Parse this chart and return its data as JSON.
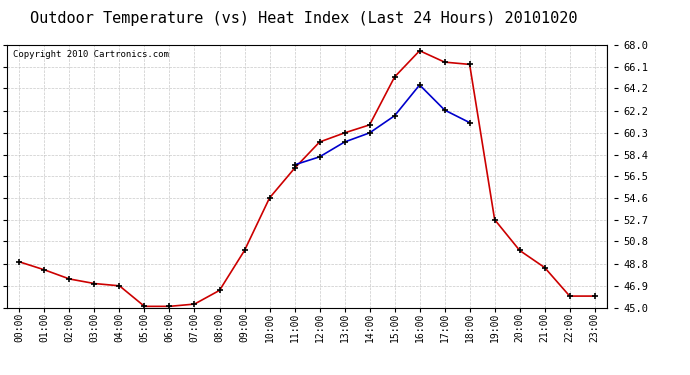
{
  "title": "Outdoor Temperature (vs) Heat Index (Last 24 Hours) 20101020",
  "copyright": "Copyright 2010 Cartronics.com",
  "x_labels": [
    "00:00",
    "01:00",
    "02:00",
    "03:00",
    "04:00",
    "05:00",
    "06:00",
    "07:00",
    "08:00",
    "09:00",
    "10:00",
    "11:00",
    "12:00",
    "13:00",
    "14:00",
    "15:00",
    "16:00",
    "17:00",
    "18:00",
    "19:00",
    "20:00",
    "21:00",
    "22:00",
    "23:00"
  ],
  "temp_y": [
    49.0,
    48.3,
    47.5,
    47.1,
    46.9,
    45.1,
    45.1,
    45.3,
    46.5,
    50.0,
    54.6,
    57.2,
    59.5,
    60.3,
    61.0,
    65.2,
    67.5,
    66.5,
    66.3,
    52.7,
    50.0,
    48.5,
    46.0,
    46.0
  ],
  "heat_x": [
    11,
    12,
    13,
    14,
    15,
    16,
    17,
    18
  ],
  "heat_y": [
    57.5,
    58.2,
    59.5,
    60.3,
    61.8,
    64.5,
    62.3,
    61.2
  ],
  "ylim_min": 45.0,
  "ylim_max": 68.0,
  "yticks": [
    45.0,
    46.9,
    48.8,
    50.8,
    52.7,
    54.6,
    56.5,
    58.4,
    60.3,
    62.2,
    64.2,
    66.1,
    68.0
  ],
  "temp_color": "#cc0000",
  "heat_color": "#0000cc",
  "bg_color": "#ffffff",
  "grid_color": "#bbbbbb",
  "title_fontsize": 11,
  "copyright_fontsize": 6.5,
  "tick_fontsize": 7,
  "ytick_fontsize": 7.5
}
